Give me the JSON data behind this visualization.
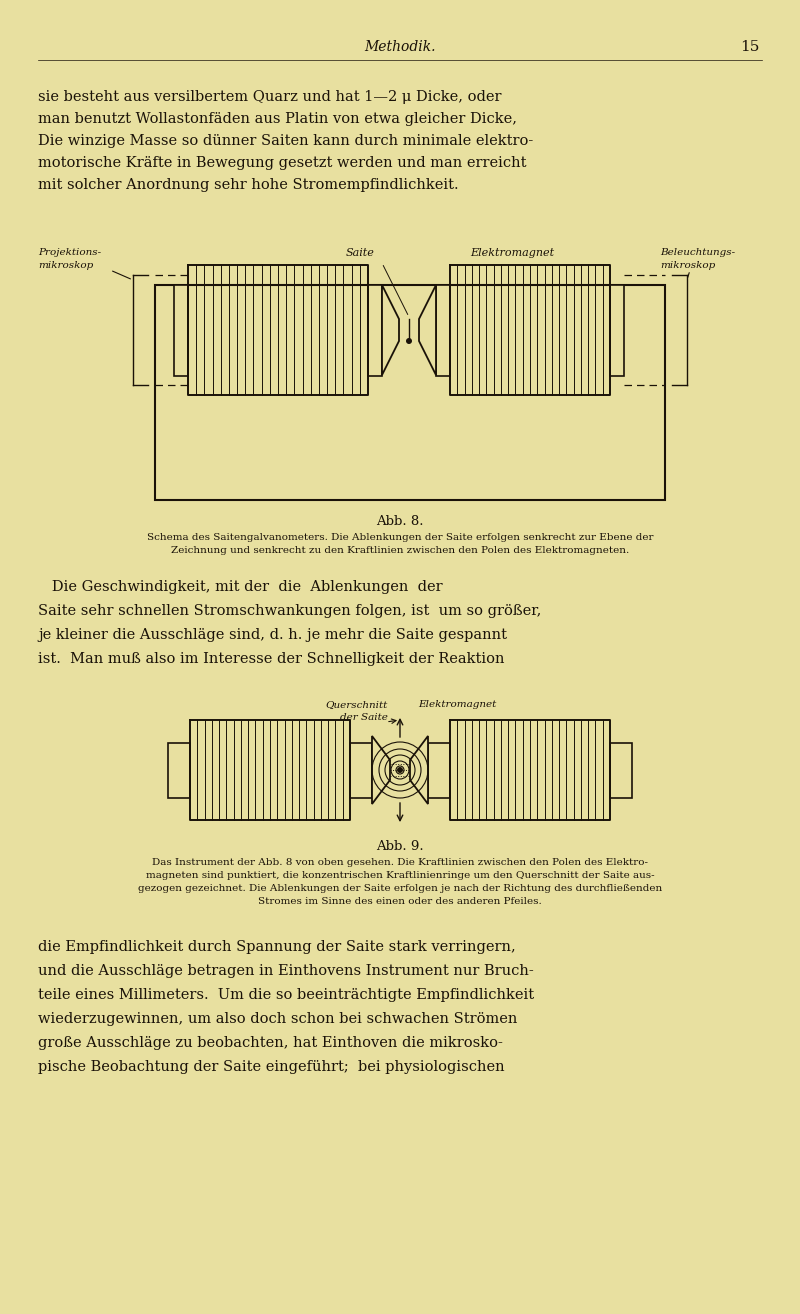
{
  "background_color": "#e8e0a0",
  "page_width": 8.0,
  "page_height": 13.14,
  "header_title": "Methodik.",
  "header_page": "15",
  "body_text_1_lines": [
    "sie besteht aus versilbertem Quarz und hat 1—2 μ Dicke, oder",
    "man benutzt Wollastonfäden aus Platin von etwa gleicher Dicke,",
    "Die winzige Masse so dünner Saiten kann durch minimale elektro-",
    "motorische Kräfte in Bewegung gesetzt werden und man erreicht",
    "mit solcher Anordnung sehr hohe Stromempfindlichkeit."
  ],
  "fig1_label_left": "Projektions-\nmikroskop",
  "fig1_label_saite": "Saite",
  "fig1_label_elektro": "Elektromagnet",
  "fig1_label_right": "Beleuchtungs-\nmikroskop",
  "fig1_caption_title": "Abb. 8.",
  "fig1_caption_line1": "Schema des Saitengalvanometers. Die Ablenkungen der Saite erfolgen senkrecht zur Ebene der",
  "fig1_caption_line2": "Zeichnung und senkrecht zu den Kraftlinien zwischen den Polen des Elektromagneten.",
  "body_text_2_lines": [
    "   Die Geschwindigkeit, mit der  die  Ablenkungen  der",
    "Saite sehr schnellen Stromschwankungen folgen, ist  um so größer,",
    "je kleiner die Ausschläge sind, d. h. je mehr die Saite gespannt",
    "ist.  Man muß also im Interesse der Schnelligkeit der Reaktion"
  ],
  "fig2_label_quer": "Querschnitt\nder Saite",
  "fig2_label_elektro": "Elektromagnet",
  "fig2_caption_title": "Abb. 9.",
  "fig2_caption_line1": "Das Instrument der Abb. 8 von oben gesehen. Die Kraftlinien zwischen den Polen des Elektro-",
  "fig2_caption_line2": "magneten sind punktiert, die konzentrischen Kraftlinienringe um den Querschnitt der Saite aus-",
  "fig2_caption_line3": "gezogen gezeichnet. Die Ablenkungen der Saite erfolgen je nach der Richtung des durchfließenden",
  "fig2_caption_line4": "Stromes im Sinne des einen oder des anderen Pfeiles.",
  "body_text_3_lines": [
    "die Empfindlichkeit durch Spannung der Saite stark verringern,",
    "und die Ausschläge betragen in Einthovens Instrument nur Bruch-",
    "teile eines Millimeters.  Um die so beeinträchtigte Empfindlichkeit",
    "wiederzugewinnen, um also doch schon bei schwachen Strömen",
    "große Ausschläge zu beobachten, hat Einthoven die mikrosko-",
    "pische Beobachtung der Saite eingeführt;  bei physiologischen"
  ],
  "text_color": "#1a1208",
  "line_color": "#1a1208"
}
